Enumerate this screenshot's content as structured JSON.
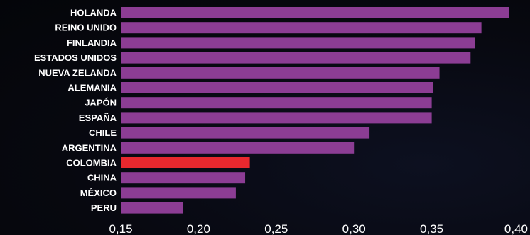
{
  "chart_data": {
    "type": "bar",
    "orientation": "horizontal",
    "categories": [
      "HOLANDA",
      "REINO UNIDO",
      "FINLANDIA",
      "ESTADOS UNIDOS",
      "NUEVA ZELANDA",
      "ALEMANIA",
      "JAPÓN",
      "ESPAÑA",
      "CHILE",
      "ARGENTINA",
      "COLOMBIA",
      "CHINA",
      "MÉXICO",
      "PERU"
    ],
    "values": [
      0.4,
      0.382,
      0.378,
      0.375,
      0.355,
      0.351,
      0.35,
      0.35,
      0.31,
      0.3,
      0.233,
      0.23,
      0.224,
      0.19
    ],
    "highlight": "COLOMBIA",
    "colors": {
      "bar": "#8c3d94",
      "highlight": "#e8282e",
      "text": "#ffffff",
      "background": "#07080f"
    },
    "xlim": [
      0.15,
      0.4
    ],
    "xticks": [
      "0,15",
      "0,20",
      "0,25",
      "0,30",
      "0,35",
      "0,40"
    ],
    "xtick_values": [
      0.15,
      0.2,
      0.25,
      0.3,
      0.35,
      0.4
    ],
    "grid": false,
    "title": "",
    "xlabel": "",
    "ylabel": ""
  }
}
